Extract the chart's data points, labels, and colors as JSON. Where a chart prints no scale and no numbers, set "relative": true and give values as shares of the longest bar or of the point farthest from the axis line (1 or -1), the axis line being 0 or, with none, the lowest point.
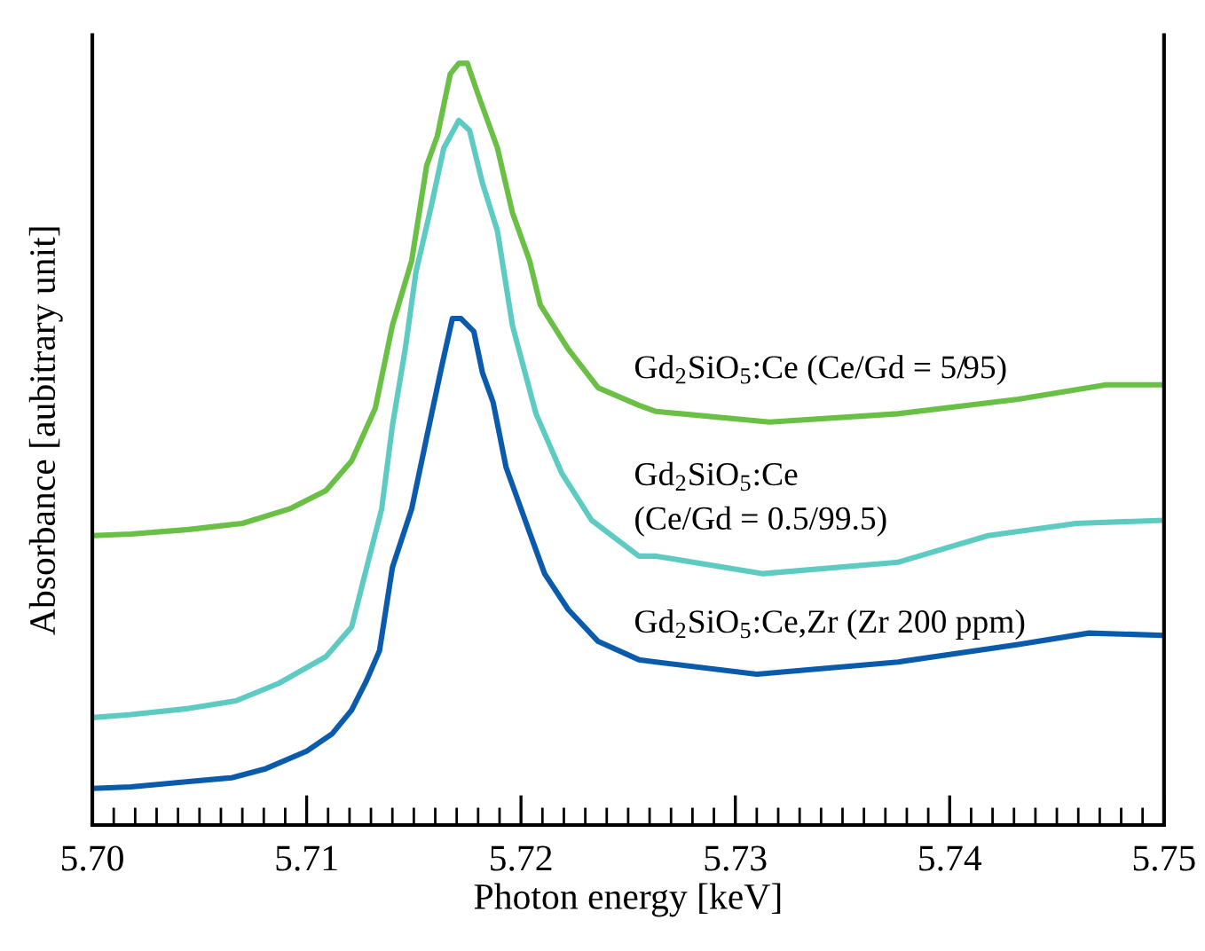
{
  "chart_data": {
    "type": "line",
    "relative": true,
    "xlabel": "Photon energy [keV]",
    "ylabel": "Absorbance [aubitrary unit]",
    "xlim": [
      5.7,
      5.75
    ],
    "xticks": [
      {
        "value": 5.7,
        "label": "5.70"
      },
      {
        "value": 5.71,
        "label": "5.71"
      },
      {
        "value": 5.72,
        "label": "5.72"
      },
      {
        "value": 5.73,
        "label": "5.73"
      },
      {
        "value": 5.74,
        "label": "5.74"
      },
      {
        "value": 5.75,
        "label": "5.75"
      }
    ],
    "tick_labels": "x",
    "grid": false,
    "legend": false,
    "marker": "none",
    "line_style": "solid",
    "series": [
      {
        "name": "Gd$_{2}$SiO$_{5}$:Ce (Ce/Gd = 5/95)",
        "color": "#6abf45",
        "x": [
          5.7,
          5.7018,
          5.7045,
          5.707,
          5.7092,
          5.7109,
          5.7121,
          5.7132,
          5.714,
          5.7149,
          5.7156,
          5.7161,
          5.7167,
          5.7171,
          5.7175,
          5.718,
          5.7189,
          5.7196,
          5.7204,
          5.7209,
          5.7222,
          5.7236,
          5.7255,
          5.7263,
          5.7316,
          5.7376,
          5.7432,
          5.7473,
          5.75
        ],
        "values": [
          0.38,
          0.382,
          0.388,
          0.396,
          0.415,
          0.439,
          0.478,
          0.547,
          0.656,
          0.741,
          0.866,
          0.905,
          0.986,
          1.0,
          1.0,
          0.959,
          0.889,
          0.804,
          0.741,
          0.683,
          0.625,
          0.574,
          0.551,
          0.543,
          0.529,
          0.54,
          0.559,
          0.578,
          0.578
        ]
      },
      {
        "name": "Gd$_{2}$SiO$_{5}$:Ce\n(Ce/Gd = 0.5/99.5)",
        "color": "#5ecbc3",
        "x": [
          5.7,
          5.7018,
          5.7045,
          5.7067,
          5.7087,
          5.7109,
          5.7121,
          5.7128,
          5.7135,
          5.714,
          5.7146,
          5.7151,
          5.7158,
          5.7164,
          5.7171,
          5.7176,
          5.7182,
          5.7189,
          5.7196,
          5.7207,
          5.7219,
          5.7233,
          5.7255,
          5.7263,
          5.7313,
          5.7376,
          5.7418,
          5.7459,
          5.75
        ],
        "values": [
          0.141,
          0.145,
          0.153,
          0.163,
          0.186,
          0.221,
          0.26,
          0.338,
          0.415,
          0.524,
          0.625,
          0.726,
          0.811,
          0.889,
          0.925,
          0.912,
          0.843,
          0.78,
          0.656,
          0.54,
          0.462,
          0.4,
          0.353,
          0.353,
          0.33,
          0.345,
          0.38,
          0.396,
          0.4
        ]
      },
      {
        "name": "Gd$_{2}$SiO$_{5}$:Ce,Zr (Zr 200 ppm)",
        "color": "#0b5bad",
        "x": [
          5.7,
          5.7018,
          5.7045,
          5.7065,
          5.7081,
          5.71,
          5.7112,
          5.7121,
          5.7128,
          5.7134,
          5.714,
          5.7149,
          5.7156,
          5.7163,
          5.7168,
          5.7172,
          5.7178,
          5.7182,
          5.7187,
          5.7193,
          5.7203,
          5.7211,
          5.7222,
          5.7236,
          5.7255,
          5.7263,
          5.731,
          5.7376,
          5.7432,
          5.7465,
          5.75
        ],
        "values": [
          0.048,
          0.05,
          0.057,
          0.062,
          0.074,
          0.097,
          0.12,
          0.151,
          0.19,
          0.229,
          0.338,
          0.415,
          0.509,
          0.602,
          0.665,
          0.665,
          0.648,
          0.594,
          0.555,
          0.47,
          0.392,
          0.33,
          0.283,
          0.241,
          0.217,
          0.214,
          0.198,
          0.214,
          0.237,
          0.252,
          0.249
        ]
      }
    ]
  }
}
